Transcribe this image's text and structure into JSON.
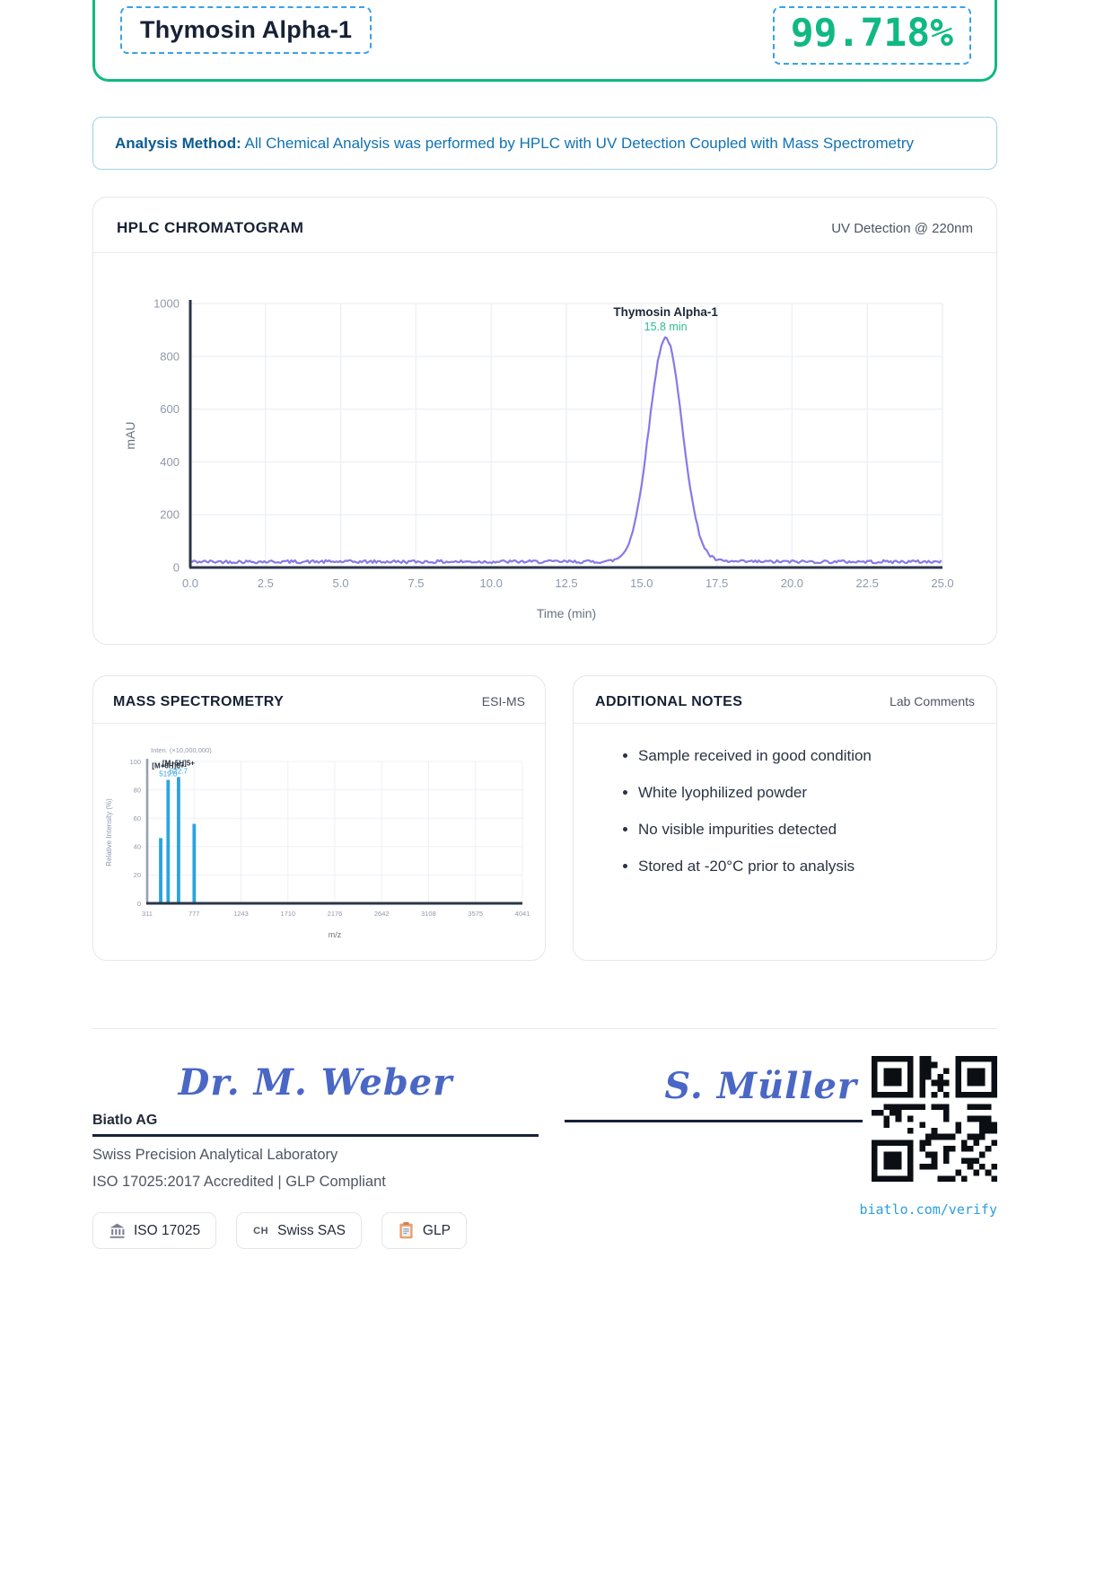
{
  "header": {
    "product_name": "Thymosin Alpha-1",
    "purity": "99.718%"
  },
  "analysis_method": {
    "label": "Analysis Method:",
    "text": " All Chemical Analysis was performed by HPLC with UV Detection Coupled with Mass Spectrometry"
  },
  "hplc": {
    "title": "HPLC CHROMATOGRAM",
    "subtitle": "UV Detection @ 220nm"
  },
  "ms": {
    "title": "MASS SPECTROMETRY",
    "subtitle": "ESI-MS"
  },
  "notes": {
    "title": "ADDITIONAL NOTES",
    "subtitle": "Lab Comments",
    "items": [
      "Sample received in good condition",
      "White lyophilized powder",
      "No visible impurities detected",
      "Stored at -20°C prior to analysis"
    ]
  },
  "footer": {
    "left_signature": "Dr. M. Weber",
    "right_signature": "S. Müller",
    "company": "Biatlo AG",
    "company_desc": "Swiss Precision Analytical Laboratory",
    "accreditation": "ISO 17025:2017 Accredited | GLP Compliant",
    "badges": [
      {
        "icon": "bank-icon",
        "label": "ISO 17025"
      },
      {
        "icon": "ch-icon",
        "label": "Swiss SAS"
      },
      {
        "icon": "clipboard-icon",
        "label": "GLP"
      }
    ],
    "verify_url": "biatlo.com/verify"
  },
  "colors": {
    "accent_green": "#10b981",
    "dashed_blue": "#38a2e8",
    "hplc_line_purple": "#8979e6",
    "annotation_green": "#2cbd8f",
    "ms_bar_blue": "#29a4e0",
    "axis_navy": "#2b3648",
    "grid": "#edf0f6",
    "tick_gray": "#8f98ab"
  },
  "chart_data": [
    {
      "type": "line",
      "title": "HPLC CHROMATOGRAM",
      "xlabel": "Time (min)",
      "ylabel": "mAU",
      "xlim": [
        0,
        25
      ],
      "ylim": [
        0,
        1000
      ],
      "xticks": [
        0.0,
        2.5,
        5.0,
        7.5,
        10.0,
        12.5,
        15.0,
        17.5,
        20.0,
        22.5,
        25.0
      ],
      "yticks": [
        0,
        200,
        400,
        600,
        800,
        1000
      ],
      "grid": true,
      "legend": "none",
      "series": [
        {
          "name": "UV 220nm",
          "color": "#8979e6",
          "baseline_mau": 22,
          "noise_mau": 12,
          "peak": {
            "center_min": 15.8,
            "height_mau": 848,
            "sigma_min": 0.55
          }
        }
      ],
      "annotation": {
        "title": "Thymosin Alpha-1",
        "value": "15.8 min",
        "x": 15.8,
        "peak_mau": 870
      }
    },
    {
      "type": "bar",
      "title": "MASS SPECTROMETRY",
      "xlabel": "m/z",
      "ylabel": "Relative Intensity (%)",
      "top_label": "Inten. (×10,000,000)",
      "xlim": [
        311,
        4041
      ],
      "ylim": [
        0,
        100
      ],
      "xticks": [
        311,
        777,
        1243,
        1710,
        2176,
        2642,
        3108,
        3575,
        4041
      ],
      "yticks": [
        0,
        20,
        40,
        60,
        80,
        100
      ],
      "grid": true,
      "peaks": [
        {
          "mz": 445.1,
          "intensity": 46
        },
        {
          "mz": 519.0,
          "intensity": 87,
          "label": "[M+6H]6+",
          "value_label": "519.0"
        },
        {
          "mz": 622.7,
          "intensity": 89,
          "label": "[M+5H]5+",
          "value_label": "622.7"
        },
        {
          "mz": 778.1,
          "intensity": 56
        }
      ]
    }
  ]
}
